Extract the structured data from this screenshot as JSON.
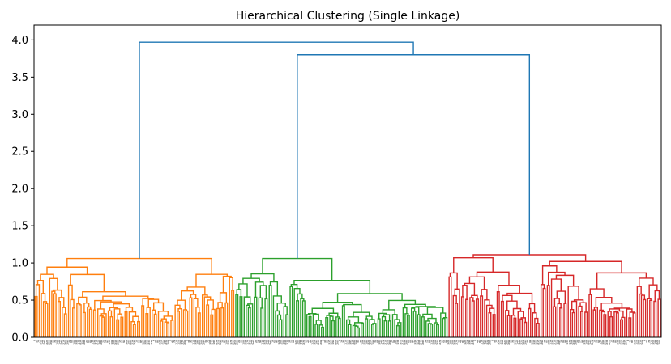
{
  "chart_data": {
    "type": "dendrogram",
    "title": "Hierarchical Clustering (Single Linkage)",
    "xlabel": "",
    "ylabel": "",
    "ylim": [
      0,
      4.2
    ],
    "yticks": [
      0.0,
      0.5,
      1.0,
      1.5,
      2.0,
      2.5,
      3.0,
      3.5,
      4.0
    ],
    "ytick_labels": [
      "0.0",
      "0.5",
      "1.0",
      "1.5",
      "2.0",
      "2.5",
      "3.0",
      "3.5",
      "4.0"
    ],
    "grid": false,
    "leaf_count": 300,
    "clusters": [
      {
        "color": "#ff7f0e",
        "leaf_start": 0,
        "leaf_end": 96,
        "top_height": 1.06
      },
      {
        "color": "#2ca02c",
        "leaf_start": 96,
        "leaf_end": 198,
        "top_height": 1.06
      },
      {
        "color": "#d62728",
        "leaf_start": 198,
        "leaf_end": 300,
        "top_height": 1.11
      }
    ],
    "above_threshold_color": "#1f77b4",
    "top_merges": [
      {
        "left": "cluster-2",
        "right": "cluster-3",
        "height": 3.8
      },
      {
        "left": "cluster-1",
        "right": "cluster-2+3",
        "height": 3.97
      }
    ]
  }
}
